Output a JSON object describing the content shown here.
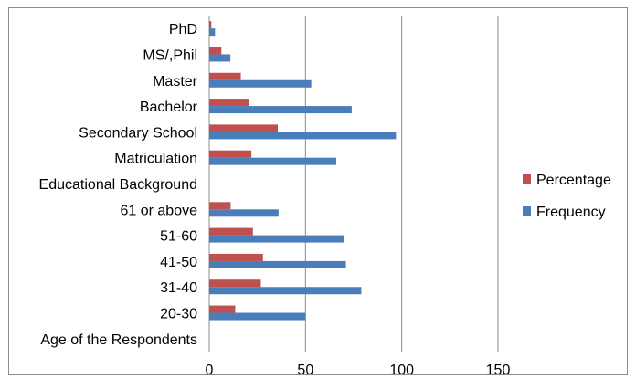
{
  "chart_data": {
    "type": "bar",
    "orientation": "horizontal",
    "categories": [
      "Age of the Respondents",
      "20-30",
      "31-40",
      "41-50",
      "51-60",
      "61 or above",
      "Educational Background",
      "Matriculation",
      "Secondary School",
      "Bachelor",
      "Master",
      "MS/,Phil",
      "PhD"
    ],
    "series": [
      {
        "name": "Frequency",
        "color": "#4a7ebb",
        "values": [
          null,
          50,
          79,
          71,
          70,
          36,
          null,
          66,
          97,
          74,
          53,
          11,
          3
        ]
      },
      {
        "name": "Percentage",
        "color": "#c0504d",
        "values": [
          null,
          13.5,
          26.8,
          27.9,
          22.7,
          11.1,
          null,
          21.9,
          35.6,
          20.4,
          16.4,
          6.3,
          1.1
        ]
      }
    ],
    "xlim": [
      0,
      150
    ],
    "xticks": [
      0,
      50,
      100,
      150
    ],
    "grid": "vertical major gridlines",
    "legend": "right",
    "legend_order": [
      "Percentage",
      "Frequency"
    ]
  }
}
